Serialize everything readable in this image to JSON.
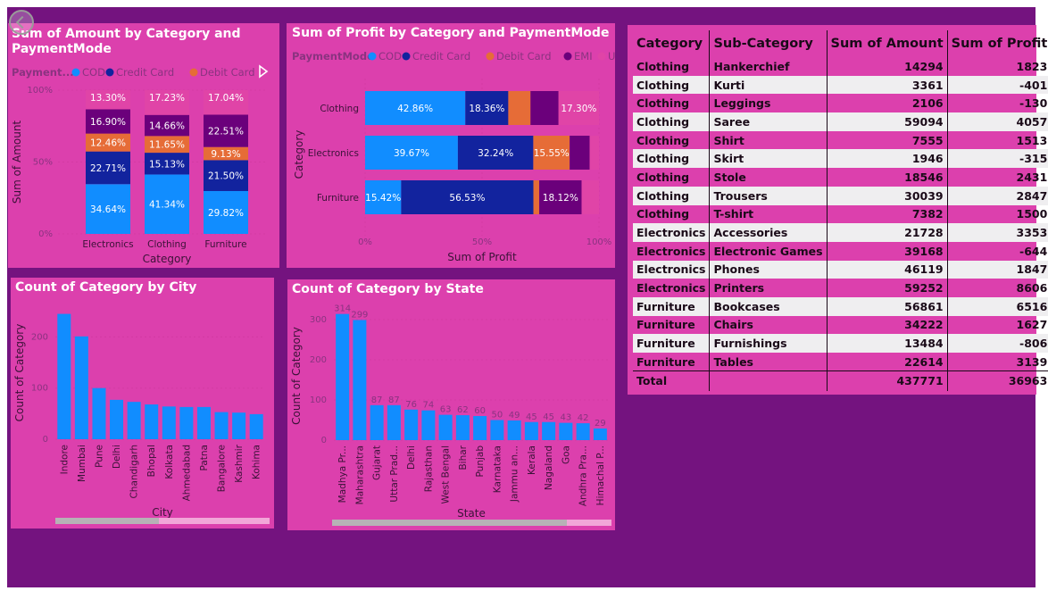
{
  "colors": {
    "cod": "#118dff",
    "credit_card": "#12239e",
    "debit_card": "#e66c37",
    "emi": "#6b007b",
    "upi": "#e044a7",
    "count_bar": "#118dff"
  },
  "chart_data": [
    {
      "id": "amount",
      "type": "bar",
      "orientation": "vertical",
      "stacked": "100%",
      "title": "Sum of Amount by Category and PaymentMode",
      "title_lines": [
        "Sum of Amount by Category and",
        "PaymentMode"
      ],
      "xlabel": "Category",
      "ylabel": "Sum of Amount",
      "legend_title": "Payment...",
      "legend": [
        "COD",
        "Credit Card",
        "Debit Card"
      ],
      "yticks": [
        "0%",
        "50%",
        "100%"
      ],
      "ylim": [
        0,
        100
      ],
      "categories": [
        "Electronics",
        "Clothing",
        "Furniture"
      ],
      "series": [
        {
          "name": "COD",
          "values": [
            34.64,
            41.34,
            29.82
          ],
          "labels": [
            "34.64%",
            "41.34%",
            "29.82%"
          ]
        },
        {
          "name": "Credit Card",
          "values": [
            22.71,
            15.13,
            21.5
          ],
          "labels": [
            "22.71%",
            "15.13%",
            "21.50%"
          ]
        },
        {
          "name": "Debit Card",
          "values": [
            12.46,
            11.65,
            9.13
          ],
          "labels": [
            "12.46%",
            "11.65%",
            "9.13%"
          ]
        },
        {
          "name": "EMI",
          "values": [
            16.9,
            14.66,
            22.51
          ],
          "labels": [
            "16.90%",
            "14.66%",
            "22.51%"
          ]
        },
        {
          "name": "UPI",
          "values": [
            13.3,
            17.23,
            17.04
          ],
          "labels": [
            "13.30%",
            "17.23%",
            "17.04%"
          ]
        }
      ]
    },
    {
      "id": "profit",
      "type": "bar",
      "orientation": "horizontal",
      "stacked": "100%",
      "title": "Sum of Profit by Category and PaymentMode",
      "xlabel": "Sum of Profit",
      "ylabel": "Category",
      "legend_title": "PaymentMode",
      "legend": [
        "COD",
        "Credit Card",
        "Debit Card",
        "EMI",
        "UPI"
      ],
      "xticks": [
        "0%",
        "50%",
        "100%"
      ],
      "xlim": [
        0,
        100
      ],
      "categories": [
        "Clothing",
        "Electronics",
        "Furniture"
      ],
      "series": [
        {
          "name": "COD",
          "values": [
            42.86,
            39.67,
            15.42
          ],
          "labels": [
            "42.86%",
            "39.67%",
            "15.42%"
          ]
        },
        {
          "name": "Credit Card",
          "values": [
            18.36,
            32.24,
            56.53
          ],
          "labels": [
            "18.36%",
            "32.24%",
            "56.53%"
          ]
        },
        {
          "name": "Debit Card",
          "values": [
            9.5,
            15.55,
            2.5
          ],
          "labels": [
            "",
            "15.55%",
            ""
          ]
        },
        {
          "name": "EMI",
          "values": [
            11.98,
            8.54,
            18.12
          ],
          "labels": [
            "",
            "",
            "18.12%"
          ]
        },
        {
          "name": "UPI",
          "values": [
            17.3,
            4.0,
            7.43
          ],
          "labels": [
            "17.30%",
            "",
            ""
          ]
        }
      ]
    },
    {
      "id": "city",
      "type": "bar",
      "orientation": "vertical",
      "title": "Count of Category by City",
      "xlabel": "City",
      "ylabel": "Count of Category",
      "yticks": [
        0,
        100,
        200
      ],
      "ylim": [
        0,
        260
      ],
      "categories": [
        "Indore",
        "Mumbai",
        "Pune",
        "Delhi",
        "Chandigarh",
        "Bhopal",
        "Kolkata",
        "Ahmedabad",
        "Patna",
        "Bangalore",
        "Kashmir",
        "Kohima"
      ],
      "values": [
        245,
        201,
        100,
        77,
        73,
        68,
        64,
        63,
        63,
        53,
        52,
        49
      ]
    },
    {
      "id": "state",
      "type": "bar",
      "orientation": "vertical",
      "title": "Count of Category by State",
      "xlabel": "State",
      "ylabel": "Count of Category",
      "yticks": [
        0,
        100,
        200,
        300
      ],
      "ylim": [
        0,
        320
      ],
      "categories": [
        "Madhya Pr...",
        "Maharashtra",
        "Gujarat",
        "Uttar Prad...",
        "Delhi",
        "Rajasthan",
        "West Bengal",
        "Bihar",
        "Punjab",
        "Karnataka",
        "Jammu an...",
        "Kerala",
        "Nagaland",
        "Goa",
        "Andhra Pra...",
        "Himachal P..."
      ],
      "values": [
        314,
        299,
        87,
        87,
        76,
        74,
        63,
        62,
        60,
        50,
        49,
        45,
        45,
        43,
        42,
        29
      ]
    }
  ],
  "table": {
    "columns": [
      "Category",
      "Sub-Category",
      "Sum of Amount",
      "Sum of Profit"
    ],
    "rows": [
      [
        "Clothing",
        "Hankerchief",
        "14294",
        "1823"
      ],
      [
        "Clothing",
        "Kurti",
        "3361",
        "-401"
      ],
      [
        "Clothing",
        "Leggings",
        "2106",
        "-130"
      ],
      [
        "Clothing",
        "Saree",
        "59094",
        "4057"
      ],
      [
        "Clothing",
        "Shirt",
        "7555",
        "1513"
      ],
      [
        "Clothing",
        "Skirt",
        "1946",
        "-315"
      ],
      [
        "Clothing",
        "Stole",
        "18546",
        "2431"
      ],
      [
        "Clothing",
        "Trousers",
        "30039",
        "2847"
      ],
      [
        "Clothing",
        "T-shirt",
        "7382",
        "1500"
      ],
      [
        "Electronics",
        "Accessories",
        "21728",
        "3353"
      ],
      [
        "Electronics",
        "Electronic Games",
        "39168",
        "-644"
      ],
      [
        "Electronics",
        "Phones",
        "46119",
        "1847"
      ],
      [
        "Electronics",
        "Printers",
        "59252",
        "8606"
      ],
      [
        "Furniture",
        "Bookcases",
        "56861",
        "6516"
      ],
      [
        "Furniture",
        "Chairs",
        "34222",
        "1627"
      ],
      [
        "Furniture",
        "Furnishings",
        "13484",
        "-806"
      ],
      [
        "Furniture",
        "Tables",
        "22614",
        "3139"
      ]
    ],
    "total": [
      "Total",
      "",
      "437771",
      "36963"
    ]
  }
}
